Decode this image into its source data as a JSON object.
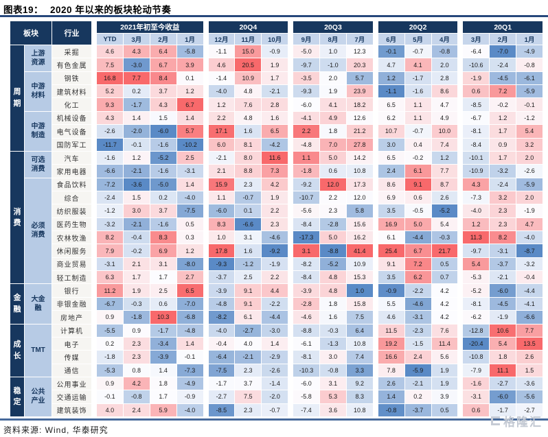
{
  "header": {
    "label": "图表19：",
    "title": "2020 年以来的板块轮动节奏"
  },
  "footer": {
    "source": "资料来源: Wind, 华泰研究",
    "watermark": "格隆汇"
  },
  "colors": {
    "navy": "#17375e",
    "month_header_bg": "#c6d5eb",
    "subgroup_bg": "#b7cbe5",
    "industry_bg": "#f6f5f2",
    "scale_min_blue": "#5a8ac6",
    "scale_mid_white": "#fcfcff",
    "scale_max_red": "#f8696b"
  },
  "chart_data": {
    "type": "heatmap",
    "title": "2020 年以来的板块轮动节奏",
    "corner": {
      "sector": "板块",
      "industry": "行业"
    },
    "column_groups": [
      {
        "label": "2021年初至今收益",
        "months": [
          "YTD",
          "3月",
          "2月",
          "1月"
        ]
      },
      {
        "label": "20Q4",
        "months": [
          "12月",
          "11月",
          "10月"
        ]
      },
      {
        "label": "20Q3",
        "months": [
          "9月",
          "8月",
          "7月"
        ]
      },
      {
        "label": "20Q2",
        "months": [
          "6月",
          "5月",
          "4月"
        ]
      },
      {
        "label": "20Q1",
        "months": [
          "3月",
          "2月",
          "1月"
        ]
      }
    ],
    "color_scale": {
      "min_color": "#5a8ac6",
      "mid_color": "#fcfcff",
      "max_color": "#f8696b",
      "normalization": "per-column min / median / max"
    },
    "sectors": [
      {
        "name": "周\n期",
        "subgroups": [
          {
            "name": "上游\n资源",
            "rows": [
              {
                "industry": "采掘",
                "values": [
                  4.6,
                  4.3,
                  6.4,
                  -5.8,
                  -1.1,
                  15.0,
                  -0.9,
                  -5.0,
                  1.0,
                  12.3,
                  -0.1,
                  -0.7,
                  -0.8,
                  -6.4,
                  -7.0,
                  -4.9
                ]
              },
              {
                "industry": "有色金属",
                "values": [
                  7.5,
                  -3.0,
                  6.7,
                  3.9,
                  4.6,
                  20.5,
                  1.9,
                  -9.7,
                  -1.0,
                  20.3,
                  4.7,
                  4.1,
                  2.0,
                  -10.6,
                  -2.4,
                  -0.8
                ]
              }
            ]
          },
          {
            "name": "中游\n材料",
            "rows": [
              {
                "industry": "钢铁",
                "values": [
                  16.8,
                  7.7,
                  8.4,
                  0.1,
                  -1.4,
                  10.9,
                  1.7,
                  -3.5,
                  2.0,
                  5.7,
                  1.2,
                  -1.7,
                  2.8,
                  -1.9,
                  -4.5,
                  -6.1
                ]
              },
              {
                "industry": "建筑材料",
                "values": [
                  5.2,
                  0.2,
                  3.7,
                  1.2,
                  -4.0,
                  4.8,
                  -2.1,
                  -9.3,
                  1.9,
                  23.9,
                  -1.1,
                  -1.6,
                  8.6,
                  0.6,
                  7.2,
                  -5.9
                ]
              },
              {
                "industry": "化工",
                "values": [
                  9.3,
                  -1.7,
                  4.3,
                  6.7,
                  1.2,
                  7.6,
                  2.8,
                  -6.0,
                  4.1,
                  18.2,
                  6.5,
                  1.1,
                  4.7,
                  -8.5,
                  -0.2,
                  -0.1
                ]
              }
            ]
          },
          {
            "name": "中游\n制造",
            "rows": [
              {
                "industry": "机械设备",
                "values": [
                  4.3,
                  1.4,
                  1.5,
                  1.4,
                  2.2,
                  4.8,
                  1.6,
                  -4.1,
                  4.9,
                  12.6,
                  6.2,
                  1.1,
                  4.9,
                  -6.7,
                  1.2,
                  -1.2
                ]
              },
              {
                "industry": "电气设备",
                "values": [
                  -2.6,
                  -2.0,
                  -6.0,
                  5.7,
                  17.1,
                  1.6,
                  6.5,
                  2.2,
                  1.8,
                  21.2,
                  10.7,
                  -0.7,
                  10.0,
                  -8.1,
                  1.7,
                  5.4
                ]
              },
              {
                "industry": "国防军工",
                "values": [
                  -11.7,
                  -0.1,
                  -1.6,
                  -10.2,
                  6.0,
                  8.1,
                  -4.2,
                  -4.8,
                  7.0,
                  27.8,
                  3.0,
                  0.4,
                  7.4,
                  -8.4,
                  0.9,
                  3.2
                ]
              }
            ]
          }
        ]
      },
      {
        "name": "消\n费",
        "subgroups": [
          {
            "name": "可选\n消费",
            "rows": [
              {
                "industry": "汽车",
                "values": [
                  -1.6,
                  1.2,
                  -5.2,
                  2.5,
                  -2.1,
                  8.0,
                  11.6,
                  1.1,
                  5.0,
                  14.2,
                  6.5,
                  -0.2,
                  1.2,
                  -10.1,
                  1.7,
                  2.0
                ]
              },
              {
                "industry": "家用电器",
                "values": [
                  -6.6,
                  -2.1,
                  -1.6,
                  -3.1,
                  2.1,
                  8.8,
                  7.3,
                  -1.8,
                  0.6,
                  10.8,
                  2.4,
                  6.1,
                  7.7,
                  -10.9,
                  -3.2,
                  -2.6
                ]
              }
            ]
          },
          {
            "name": "必须\n消费",
            "rows": [
              {
                "industry": "食品饮料",
                "values": [
                  -7.2,
                  -3.6,
                  -5.0,
                  1.4,
                  15.9,
                  2.3,
                  4.2,
                  -9.2,
                  12.0,
                  17.3,
                  8.6,
                  9.1,
                  8.7,
                  4.3,
                  -2.4,
                  -5.9
                ]
              },
              {
                "industry": "综合",
                "values": [
                  -2.4,
                  1.5,
                  0.2,
                  -4.0,
                  1.1,
                  -0.7,
                  1.9,
                  -10.7,
                  2.2,
                  12.0,
                  6.9,
                  0.6,
                  2.6,
                  -7.3,
                  3.2,
                  2.0
                ]
              },
              {
                "industry": "纺织服装",
                "values": [
                  -1.2,
                  3.0,
                  3.7,
                  -7.5,
                  -6.0,
                  0.1,
                  2.2,
                  -5.6,
                  2.3,
                  5.8,
                  3.5,
                  -0.5,
                  -5.2,
                  -4.0,
                  2.3,
                  -1.9
                ]
              },
              {
                "industry": "医药生物",
                "values": [
                  -3.2,
                  -2.1,
                  -1.6,
                  0.5,
                  8.3,
                  -6.6,
                  2.3,
                  -8.4,
                  -2.8,
                  15.6,
                  16.9,
                  5.0,
                  5.4,
                  1.2,
                  2.3,
                  4.7
                ]
              },
              {
                "industry": "农林牧渔",
                "values": [
                  8.2,
                  -0.4,
                  8.3,
                  0.3,
                  1.0,
                  3.1,
                  -4.6,
                  -17.3,
                  5.0,
                  16.2,
                  6.1,
                  -4.4,
                  -0.3,
                  11.3,
                  8.2,
                  -4.0
                ]
              },
              {
                "industry": "休闲服务",
                "values": [
                  7.9,
                  -0.2,
                  6.9,
                  1.2,
                  17.8,
                  1.6,
                  -9.2,
                  3.1,
                  -8.8,
                  41.4,
                  25.4,
                  6.7,
                  21.7,
                  -9.7,
                  -3.1,
                  -8.7
                ]
              },
              {
                "industry": "商业贸易",
                "values": [
                  -3.1,
                  2.1,
                  3.1,
                  -8.0,
                  -9.3,
                  -1.2,
                  -1.9,
                  -8.2,
                  -5.2,
                  10.9,
                  9.1,
                  7.2,
                  0.5,
                  5.4,
                  -3.7,
                  -3.2
                ]
              },
              {
                "industry": "轻工制造",
                "values": [
                  6.3,
                  1.7,
                  1.7,
                  2.7,
                  -3.7,
                  2.5,
                  2.2,
                  -8.4,
                  4.8,
                  15.3,
                  3.5,
                  6.2,
                  0.7,
                  -5.3,
                  -2.1,
                  -0.4
                ]
              }
            ]
          }
        ]
      },
      {
        "name": "金\n融",
        "subgroups": [
          {
            "name": "大金\n融",
            "rows": [
              {
                "industry": "银行",
                "values": [
                  11.2,
                  1.9,
                  2.5,
                  6.5,
                  -3.9,
                  9.1,
                  4.4,
                  -3.9,
                  4.8,
                  1.0,
                  -0.9,
                  -2.2,
                  4.2,
                  -5.2,
                  -6.0,
                  -4.4
                ]
              },
              {
                "industry": "非银金融",
                "values": [
                  -6.7,
                  -0.3,
                  0.6,
                  -7.0,
                  -4.8,
                  9.1,
                  -2.2,
                  -2.8,
                  1.8,
                  15.8,
                  5.5,
                  -4.6,
                  4.2,
                  -8.1,
                  -4.5,
                  -4.1
                ]
              },
              {
                "industry": "房地产",
                "values": [
                  0.9,
                  -1.8,
                  10.3,
                  -6.8,
                  -8.2,
                  6.1,
                  -4.4,
                  -4.6,
                  1.6,
                  7.5,
                  4.6,
                  -3.1,
                  4.2,
                  -6.2,
                  -1.9,
                  -6.6
                ]
              }
            ]
          }
        ]
      },
      {
        "name": "成\n长",
        "subgroups": [
          {
            "name": "TMT",
            "rows": [
              {
                "industry": "计算机",
                "values": [
                  -5.5,
                  0.9,
                  -1.7,
                  -4.8,
                  -4.0,
                  -2.7,
                  -3.0,
                  -8.8,
                  -0.3,
                  6.4,
                  11.5,
                  -2.3,
                  7.6,
                  -12.8,
                  10.6,
                  7.7
                ]
              },
              {
                "industry": "电子",
                "values": [
                  0.2,
                  2.3,
                  -3.4,
                  1.4,
                  -0.4,
                  4.0,
                  1.4,
                  -6.1,
                  -1.3,
                  10.8,
                  19.2,
                  -1.5,
                  11.4,
                  -20.4,
                  5.4,
                  13.5
                ]
              },
              {
                "industry": "传媒",
                "values": [
                  -1.8,
                  2.3,
                  -3.9,
                  -0.1,
                  -6.4,
                  -2.1,
                  -2.9,
                  -8.1,
                  3.0,
                  7.4,
                  16.6,
                  2.4,
                  5.6,
                  -10.8,
                  1.8,
                  2.6
                ]
              },
              {
                "industry": "通信",
                "values": [
                  -5.3,
                  0.8,
                  1.4,
                  -7.3,
                  -7.5,
                  2.3,
                  -2.6,
                  -10.3,
                  -0.8,
                  3.3,
                  7.8,
                  -5.9,
                  1.9,
                  -7.9,
                  11.1,
                  1.5
                ]
              }
            ]
          }
        ]
      },
      {
        "name": "稳\n定",
        "subgroups": [
          {
            "name": "公共\n产业",
            "rows": [
              {
                "industry": "公用事业",
                "values": [
                  0.9,
                  4.2,
                  1.8,
                  -4.9,
                  -1.7,
                  3.7,
                  -1.4,
                  -6.0,
                  3.1,
                  9.2,
                  2.6,
                  -2.1,
                  1.9,
                  -1.6,
                  -2.7,
                  -3.6
                ]
              },
              {
                "industry": "交通运输",
                "values": [
                  -0.1,
                  -0.8,
                  1.7,
                  -0.9,
                  -2.7,
                  7.5,
                  -2.0,
                  -5.8,
                  5.3,
                  8.3,
                  1.4,
                  0.2,
                  3.9,
                  -3.1,
                  -6.0,
                  -5.6
                ]
              },
              {
                "industry": "建筑装饰",
                "values": [
                  4.0,
                  2.4,
                  5.9,
                  -4.0,
                  -8.5,
                  2.3,
                  -0.7,
                  -7.4,
                  3.6,
                  10.8,
                  -0.8,
                  -3.7,
                  0.5,
                  0.6,
                  -1.7,
                  -2.7
                ]
              }
            ]
          }
        ]
      }
    ]
  }
}
